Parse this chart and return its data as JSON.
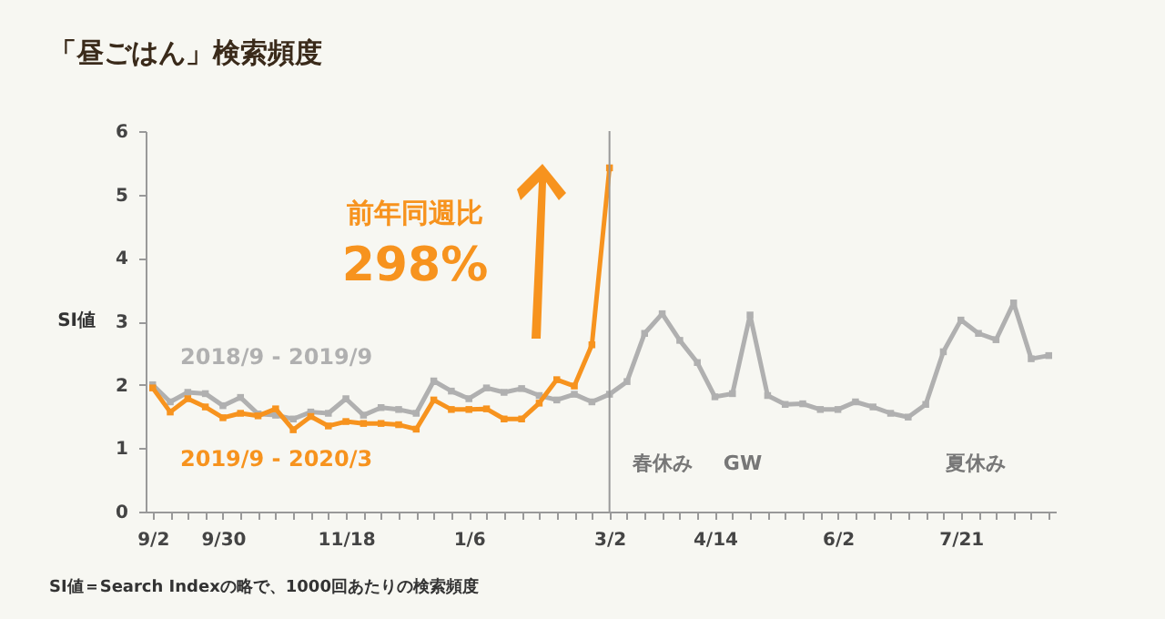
{
  "chart_data": {
    "type": "line",
    "title": "「昼ごはん」検索頻度",
    "ylabel": "SI値",
    "categories": [
      "9/2",
      null,
      null,
      null,
      "9/30",
      null,
      null,
      null,
      null,
      null,
      null,
      "11/18",
      null,
      null,
      null,
      null,
      null,
      null,
      "1/6",
      null,
      null,
      null,
      null,
      null,
      null,
      null,
      "3/2",
      null,
      null,
      null,
      null,
      null,
      "4/14",
      null,
      null,
      null,
      null,
      null,
      null,
      "6/2",
      null,
      null,
      null,
      null,
      null,
      null,
      "7/21",
      null,
      null,
      null,
      null,
      null
    ],
    "series": [
      {
        "name": "2018/9 - 2019/9",
        "color": "#b0b0b0",
        "values": [
          2.0,
          1.73,
          1.88,
          1.86,
          1.67,
          1.8,
          1.54,
          1.52,
          1.46,
          1.57,
          1.55,
          1.78,
          1.52,
          1.64,
          1.61,
          1.55,
          2.06,
          1.9,
          1.78,
          1.95,
          1.88,
          1.94,
          1.83,
          1.76,
          1.85,
          1.73,
          1.85,
          2.05,
          2.81,
          3.12,
          2.7,
          2.35,
          1.81,
          1.86,
          3.1,
          1.83,
          1.69,
          1.7,
          1.61,
          1.61,
          1.73,
          1.65,
          1.55,
          1.49,
          1.69,
          2.52,
          3.02,
          2.81,
          2.71,
          3.29,
          2.41,
          2.46
        ]
      },
      {
        "name": "2019/9 - 2020/3",
        "color": "#f7931e",
        "values": [
          1.95,
          1.57,
          1.78,
          1.65,
          1.48,
          1.55,
          1.51,
          1.62,
          1.29,
          1.5,
          1.35,
          1.42,
          1.39,
          1.39,
          1.37,
          1.3,
          1.76,
          1.61,
          1.61,
          1.62,
          1.46,
          1.46,
          1.71,
          2.08,
          1.98,
          2.63,
          5.42,
          null,
          null,
          null,
          null,
          null,
          null,
          null,
          null,
          null,
          null,
          null,
          null,
          null,
          null,
          null,
          null,
          null,
          null,
          null,
          null,
          null,
          null,
          null,
          null,
          null
        ]
      }
    ],
    "ylim": [
      0,
      6
    ],
    "yticks": [
      0,
      1,
      2,
      3,
      4,
      5,
      6
    ],
    "marker": "square",
    "ref_lines": [
      {
        "axis": "x",
        "value": "3/2",
        "color": "#999999"
      }
    ],
    "annotations": [
      "前年同週比",
      "298%",
      "春休み",
      "GW",
      "夏休み",
      "SI値＝Search Indexの略で、1000回あたりの検索頻度"
    ]
  }
}
